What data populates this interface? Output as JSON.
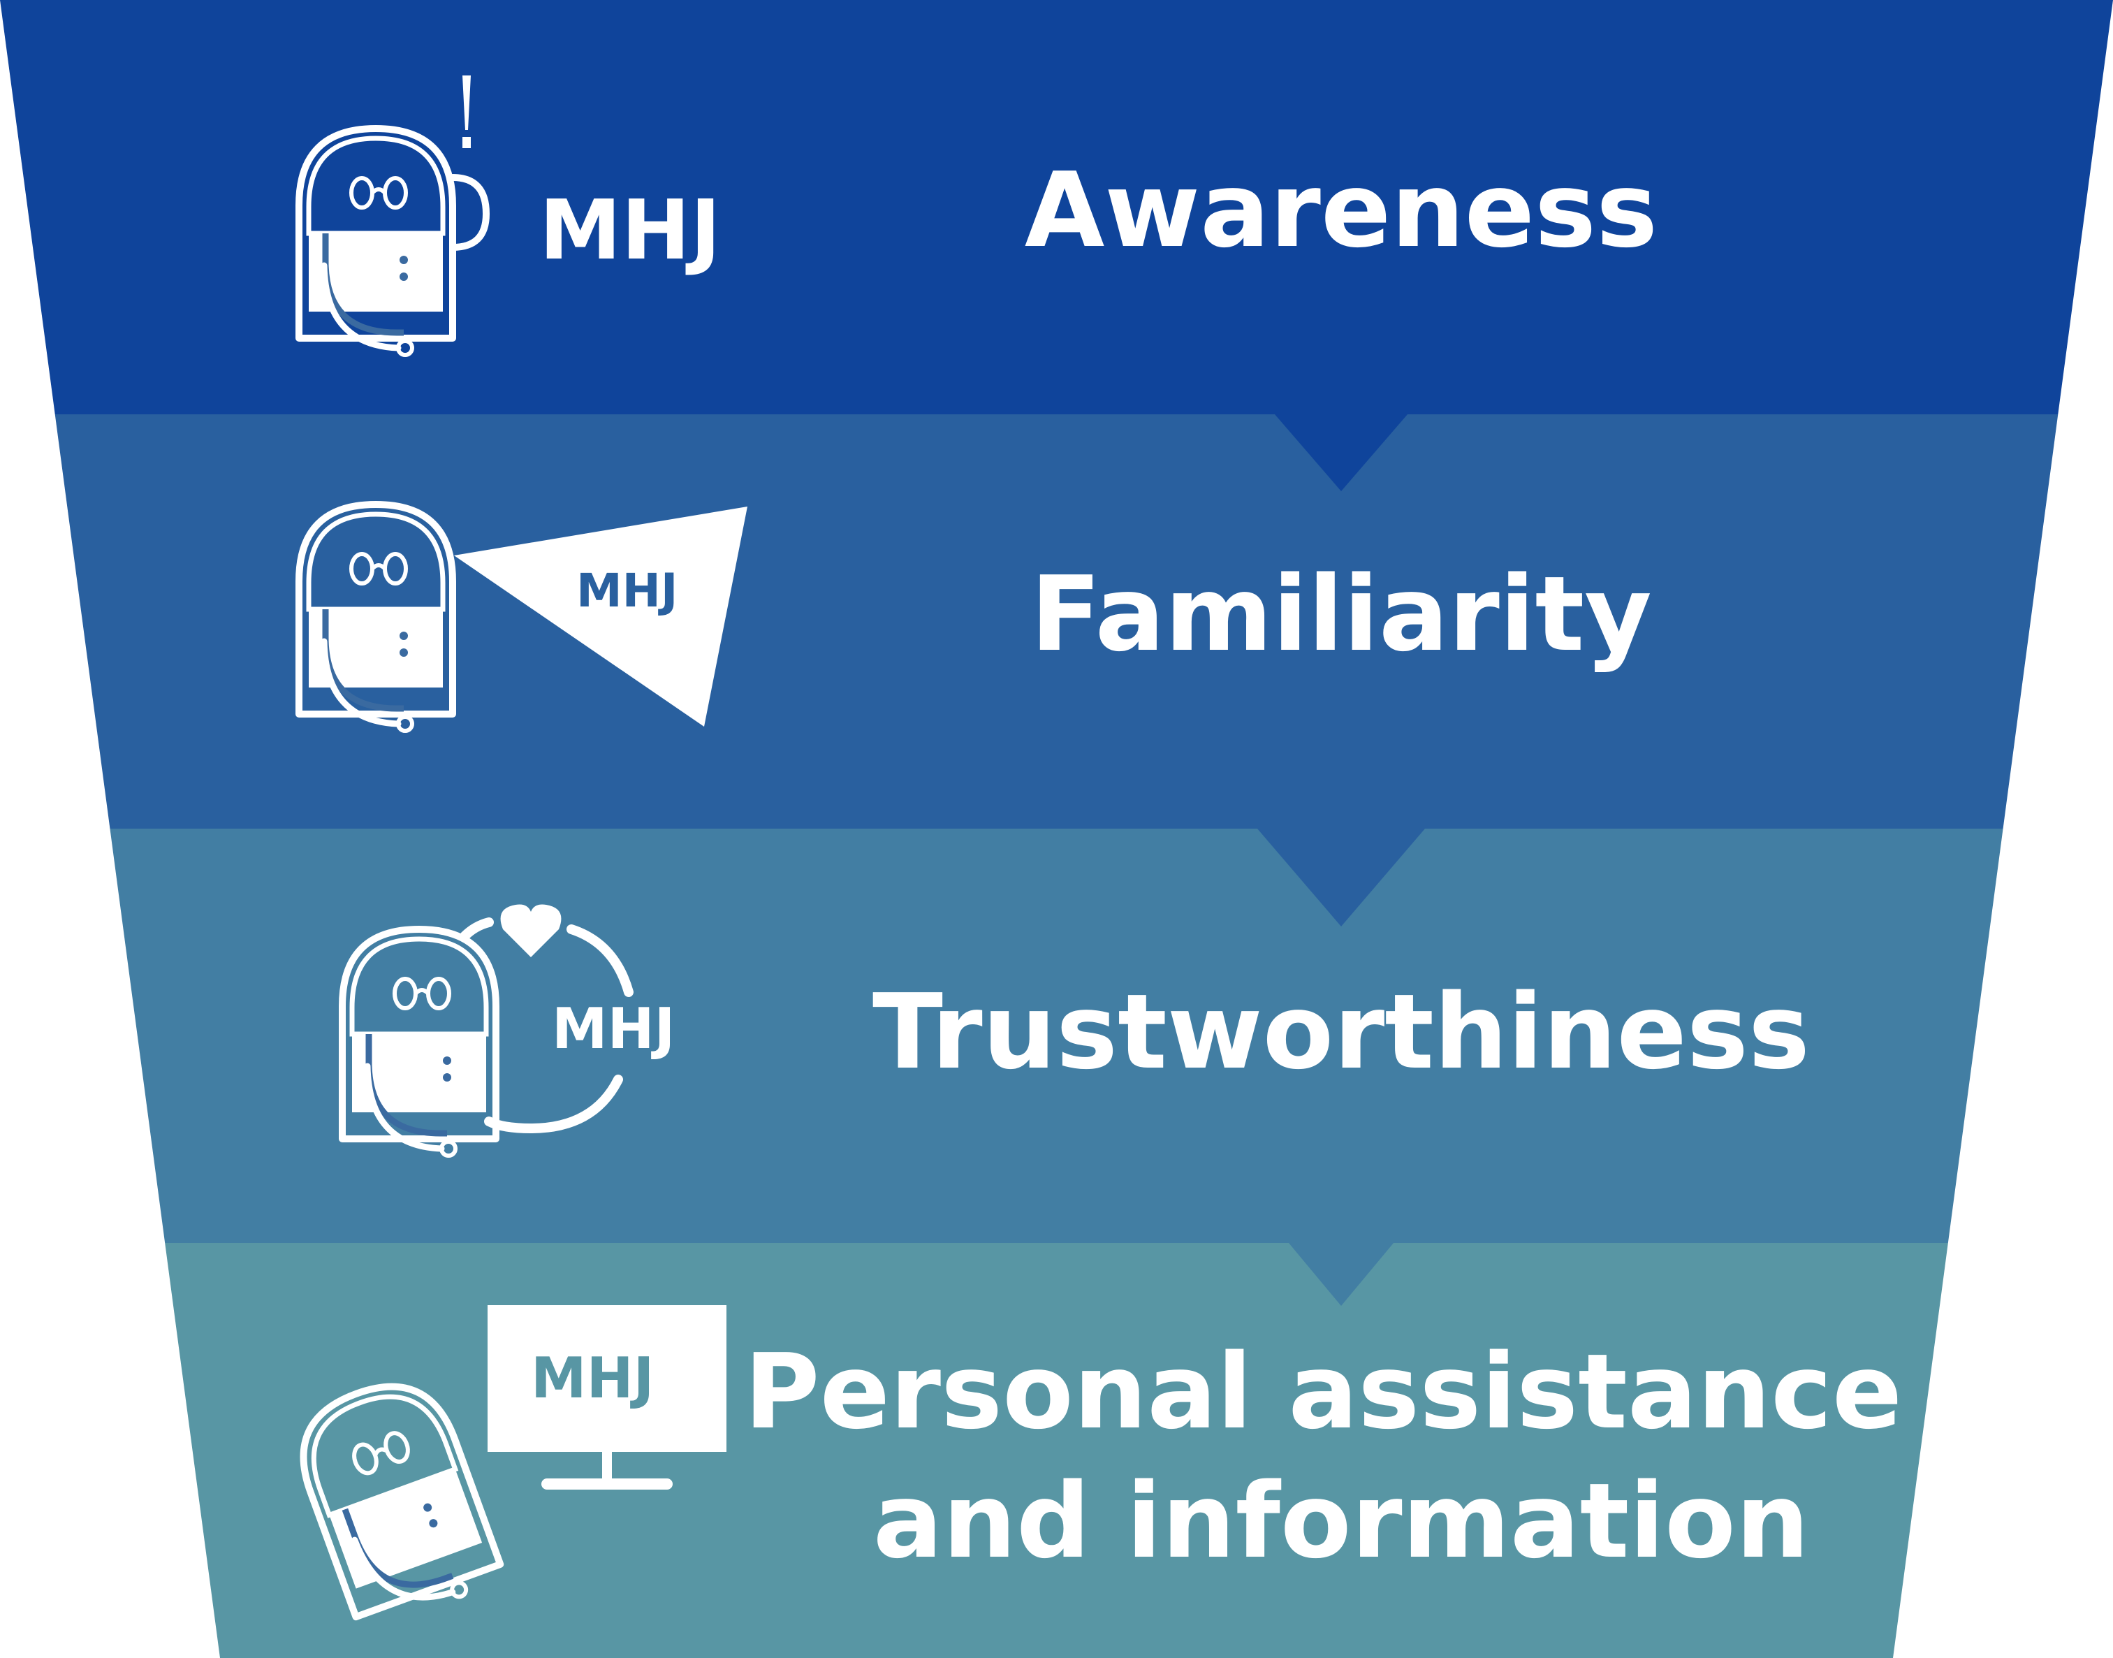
{
  "funnel": {
    "stages": [
      {
        "label": "Awareness",
        "color": "#0F449B",
        "icon": "person-with-headset-exclamation-icon",
        "brand": "MHJ"
      },
      {
        "label": "Familiarity",
        "color": "#29609F",
        "icon": "person-with-megaphone-icon",
        "brand": "MHJ"
      },
      {
        "label": "Trustworthiness",
        "color": "#427EA3",
        "icon": "person-with-heart-cycle-icon",
        "brand": "MHJ"
      },
      {
        "label_lines": [
          "Personal assistance",
          "and information"
        ],
        "color": "#5896A4",
        "icon": "person-at-monitor-icon",
        "brand": "MHJ"
      }
    ]
  }
}
